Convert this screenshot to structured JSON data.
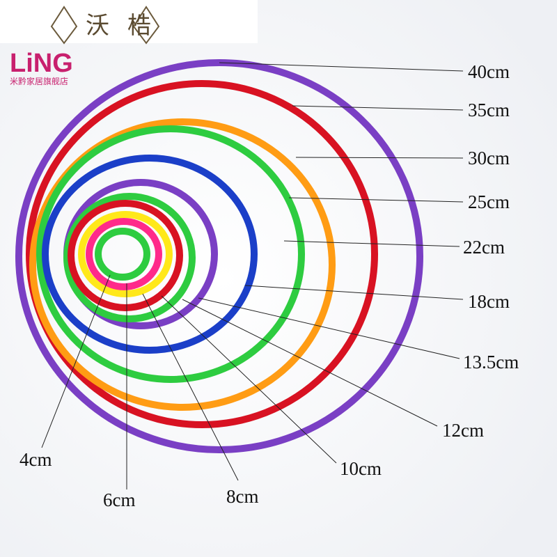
{
  "logo": {
    "left_char": "沃",
    "right_char": "梏",
    "brand": "LiNG",
    "store": "米黔家居旗舰店"
  },
  "labels": [
    "40cm",
    "35cm",
    "30cm",
    "25cm",
    "22cm",
    "18cm",
    "13.5cm",
    "12cm",
    "10cm",
    "8cm",
    "6cm",
    "4cm"
  ]
}
